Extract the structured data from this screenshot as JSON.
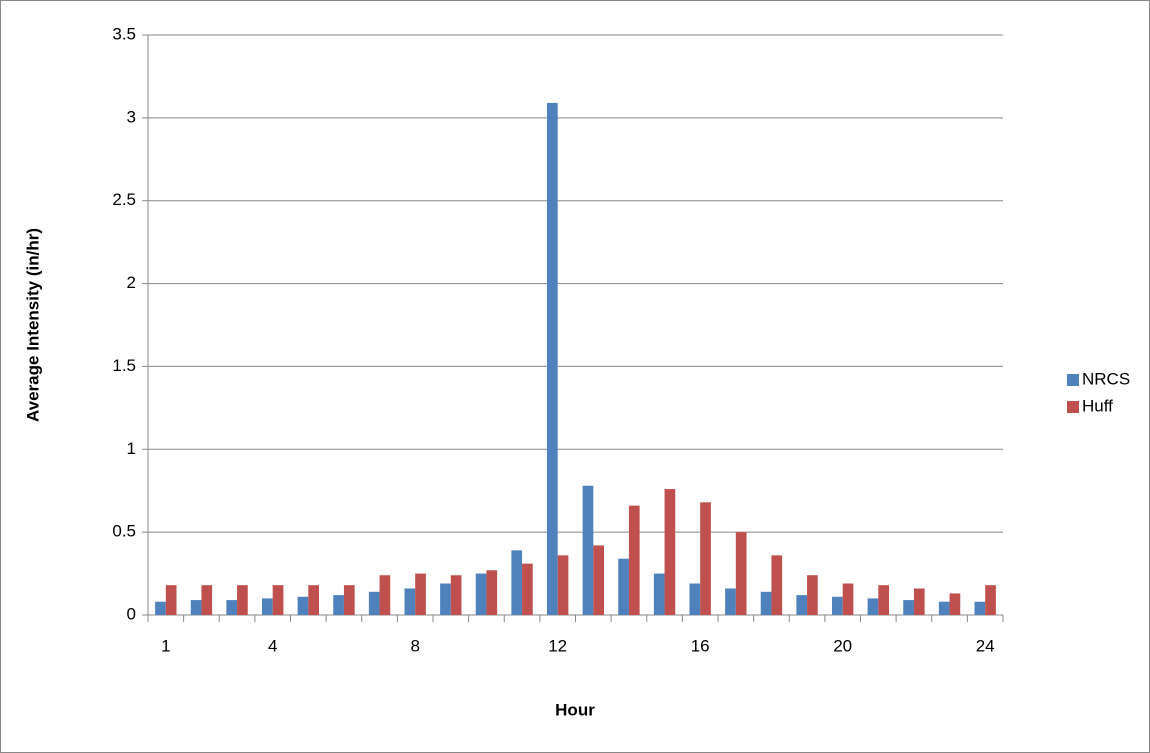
{
  "chart_data": {
    "type": "bar",
    "x_label": "Hour",
    "y_label": "Average Intensity (in/hr)",
    "categories": [
      "1",
      null,
      null,
      "4",
      null,
      null,
      null,
      "8",
      null,
      null,
      null,
      "12",
      null,
      null,
      null,
      "16",
      null,
      null,
      null,
      "20",
      null,
      null,
      null,
      "24"
    ],
    "series": [
      {
        "name": "NRCS",
        "color": "#4f81bd",
        "values": [
          0.08,
          0.09,
          0.09,
          0.1,
          0.11,
          0.12,
          0.14,
          0.16,
          0.19,
          0.25,
          0.39,
          3.09,
          0.78,
          0.34,
          0.25,
          0.19,
          0.16,
          0.14,
          0.12,
          0.11,
          0.1,
          0.09,
          0.08,
          0.08
        ]
      },
      {
        "name": "Huff",
        "color": "#c0504d",
        "values": [
          0.18,
          0.18,
          0.18,
          0.18,
          0.18,
          0.18,
          0.24,
          0.25,
          0.24,
          0.27,
          0.31,
          0.36,
          0.42,
          0.66,
          0.76,
          0.68,
          0.5,
          0.36,
          0.24,
          0.19,
          0.18,
          0.16,
          0.13,
          0.18
        ]
      }
    ],
    "ylim": [
      0,
      3.5
    ],
    "yticks": [
      0,
      0.5,
      1,
      1.5,
      2,
      2.5,
      3,
      3.5
    ],
    "grid": true,
    "legend": "right"
  }
}
